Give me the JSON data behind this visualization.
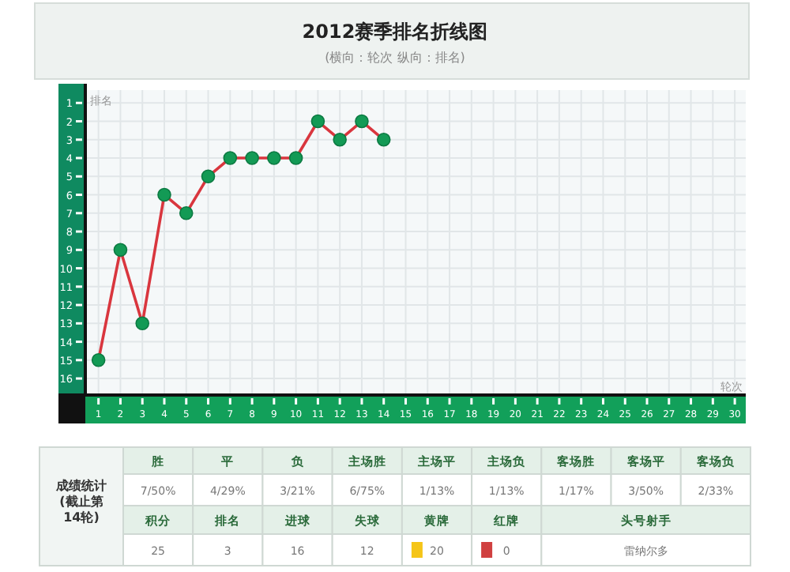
{
  "chart_data": {
    "type": "line",
    "title": "2012赛季排名折线图",
    "subtitle": "(横向：轮次 纵向：排名)",
    "xlabel": "轮次",
    "ylabel": "排名",
    "x": [
      1,
      2,
      3,
      4,
      5,
      6,
      7,
      8,
      9,
      10,
      11,
      12,
      13,
      14
    ],
    "series": [
      {
        "color": "#d9363e",
        "values": [
          15,
          9,
          13,
          6,
          7,
          5,
          4,
          4,
          4,
          4,
          2,
          3,
          2,
          3
        ]
      }
    ],
    "xlim": [
      0.4,
      30.5
    ],
    "ylim": [
      16.9,
      0.3
    ],
    "xticks": [
      1,
      2,
      3,
      4,
      5,
      6,
      7,
      8,
      9,
      10,
      11,
      12,
      13,
      14,
      15,
      16,
      17,
      18,
      19,
      20,
      21,
      22,
      23,
      24,
      25,
      26,
      27,
      28,
      29,
      30
    ],
    "yticks": [
      1,
      2,
      3,
      4,
      5,
      6,
      7,
      8,
      9,
      10,
      11,
      12,
      13,
      14,
      15,
      16
    ],
    "grid": true,
    "marker": "circle",
    "line_style": "solid",
    "annotations": [
      "成绩统计 (截止第14轮)",
      "胜",
      "平",
      "负",
      "主场胜",
      "主场平",
      "主场负",
      "客场胜",
      "客场平",
      "客场负",
      "7/50%",
      "4/29%",
      "3/21%",
      "6/75%",
      "1/13%",
      "1/13%",
      "1/17%",
      "3/50%",
      "2/33%",
      "积分",
      "排名",
      "进球",
      "失球",
      "黄牌",
      "红牌",
      "头号射手",
      "25",
      "3",
      "16",
      "12",
      "20",
      "0",
      "雷纳尔多"
    ]
  }
}
